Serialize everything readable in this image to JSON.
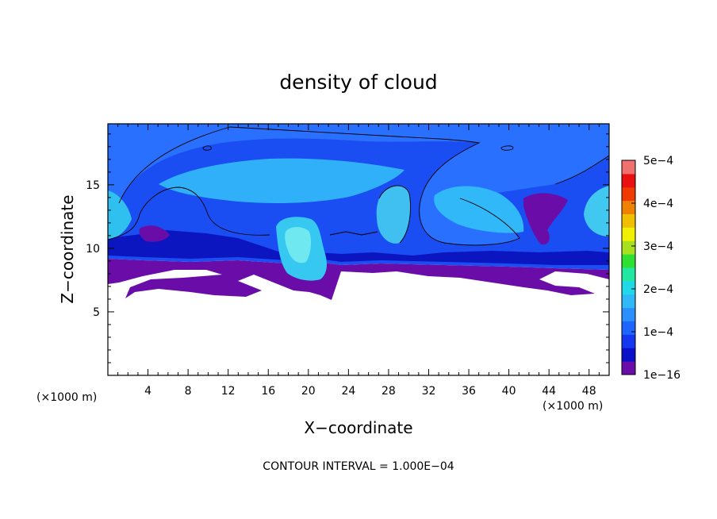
{
  "chart_data": {
    "type": "heatmap",
    "title": "density of cloud",
    "xlabel": "X−coordinate",
    "ylabel": "Z−coordinate",
    "x_unit": "(×1000 m)",
    "z_unit": "(×1000 m)",
    "xlim": [
      0,
      50
    ],
    "ylim": [
      0,
      19.8
    ],
    "x_ticks": [
      4,
      8,
      12,
      16,
      20,
      24,
      28,
      32,
      36,
      40,
      44,
      48
    ],
    "y_ticks": [
      5,
      10,
      15
    ],
    "colorbar": {
      "min": 1e-16,
      "max": 0.0005,
      "tick_labels": [
        "1e−16",
        "1e−4",
        "2e−4",
        "3e−4",
        "4e−4",
        "5e−4"
      ],
      "colors": [
        "#6a0da8",
        "#0a10c8",
        "#1438f0",
        "#1e66ff",
        "#2a90ff",
        "#30b8f8",
        "#20d8e8",
        "#20e8a0",
        "#30e030",
        "#a8e020",
        "#f0f000",
        "#f0c000",
        "#f08000",
        "#f03a00",
        "#e81010",
        "#f07070"
      ]
    },
    "contour_interval": "CONTOUR INTERVAL = 1.000E−04"
  }
}
